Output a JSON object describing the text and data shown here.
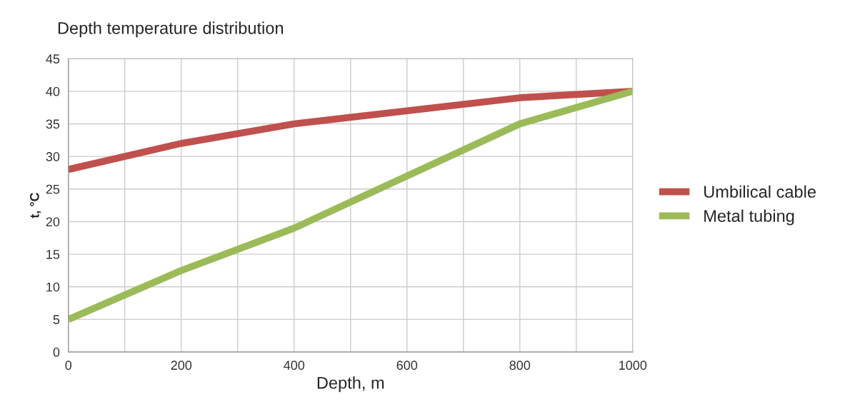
{
  "chart_data": {
    "type": "line",
    "title": "Depth temperature distribution",
    "xlabel": "Depth, m",
    "ylabel": "t, °C",
    "x": [
      0,
      200,
      400,
      600,
      800,
      1000
    ],
    "series": [
      {
        "name": "Umbilical cable",
        "color": "#c0504d",
        "values": [
          28,
          32,
          35,
          37,
          39,
          40
        ]
      },
      {
        "name": "Metal tubing",
        "color": "#9bbb59",
        "values": [
          5,
          12.5,
          19,
          27,
          35,
          40
        ]
      }
    ],
    "xlim": [
      0,
      1000
    ],
    "ylim": [
      0,
      45
    ],
    "xticks": [
      0,
      {
        "value": 100,
        "label": null
      },
      200,
      {
        "value": 300,
        "label": null
      },
      400,
      {
        "value": 500,
        "label": null
      },
      600,
      {
        "value": 700,
        "label": null
      },
      800,
      {
        "value": 900,
        "label": null
      },
      1000
    ],
    "yticks": [
      0,
      5,
      10,
      15,
      20,
      25,
      30,
      35,
      40,
      45
    ],
    "grid": true,
    "legend": "right",
    "marker": "none",
    "line_style": "solid"
  }
}
